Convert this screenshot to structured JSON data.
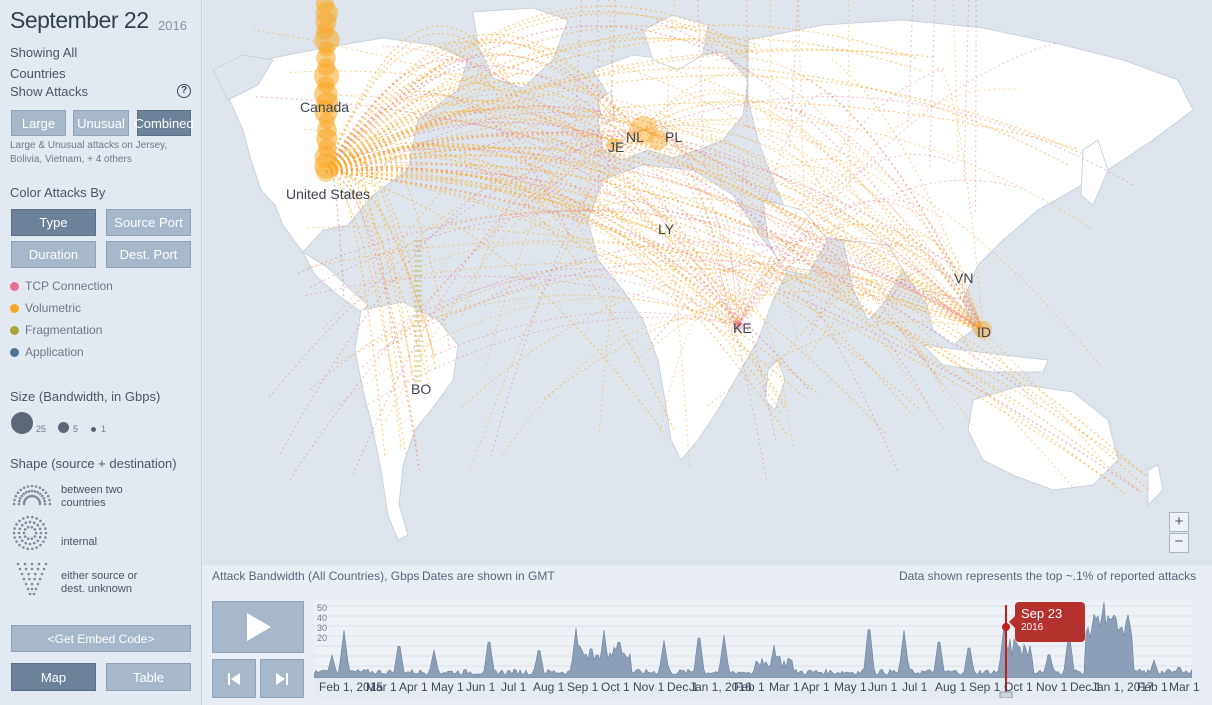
{
  "header": {
    "date": "September 22",
    "year": "2016"
  },
  "filter": {
    "showing": "Showing All",
    "scope": "Countries",
    "show_attacks": "Show Attacks",
    "help": "?"
  },
  "attack_buttons": {
    "large": "Large",
    "unusual": "Unusual",
    "combined": "Combined",
    "active": "combined"
  },
  "attack_note": "Large & Unusual attacks on Jersey, Bolivia, Vietnam, + 4 others",
  "color_by": {
    "label": "Color Attacks By",
    "type": "Type",
    "source_port": "Source Port",
    "duration": "Duration",
    "dest_port": "Dest. Port",
    "active": "type"
  },
  "legend": [
    {
      "label": "TCP Connection",
      "color": "#e96f8f"
    },
    {
      "label": "Volumetric",
      "color": "#f9a825"
    },
    {
      "label": "Fragmentation",
      "color": "#a8a23a"
    },
    {
      "label": "Application",
      "color": "#4e7596"
    }
  ],
  "size_legend": {
    "label": "Size (Bandwidth, in Gbps)",
    "values": [
      "25",
      "5",
      "1"
    ]
  },
  "shape_legend": {
    "label": "Shape (source + destination)",
    "between": "between two countries",
    "internal": "internal",
    "unknown": "either source or dest. unknown"
  },
  "embed_button": "<Get Embed Code>",
  "view_buttons": {
    "map": "Map",
    "table": "Table",
    "active": "map"
  },
  "map_labels": [
    {
      "id": "canada",
      "text": "Canada"
    },
    {
      "id": "united-states",
      "text": "United States"
    },
    {
      "id": "je",
      "text": "JE"
    },
    {
      "id": "nl",
      "text": "NL"
    },
    {
      "id": "pl",
      "text": "PL"
    },
    {
      "id": "ly",
      "text": "LY"
    },
    {
      "id": "vn",
      "text": "VN"
    },
    {
      "id": "ke",
      "text": "KE"
    },
    {
      "id": "id",
      "text": "ID"
    },
    {
      "id": "bo",
      "text": "BO"
    }
  ],
  "zoom": {
    "in": "+",
    "out": "−"
  },
  "timeline": {
    "title": "Attack Bandwidth (All Countries), Gbps",
    "gmt_note": "Dates are shown in GMT",
    "top_note": "Data shown represents the top ~.1% of reported attacks",
    "y_ticks": [
      "50",
      "40",
      "30",
      "20"
    ],
    "x_ticks": [
      "Feb 1, 2015",
      "Mar 1",
      "Apr 1",
      "May 1",
      "Jun 1",
      "Jul 1",
      "Aug 1",
      "Sep 1",
      "Oct 1",
      "Nov 1",
      "Dec 1",
      "Jan 1, 2016",
      "Feb 1",
      "Mar 1",
      "Apr 1",
      "May 1",
      "Jun 1",
      "Jul 1",
      "Aug 1",
      "Sep 1",
      "Oct 1",
      "Nov 1",
      "Dec 1",
      "Jan 1, 2017",
      "Feb 1",
      "Mar 1"
    ],
    "selected": {
      "date": "Sep 23",
      "year": "2016"
    }
  },
  "controls": {
    "play": "play-icon",
    "prev": "step-back-icon",
    "next": "step-forward-icon"
  }
}
